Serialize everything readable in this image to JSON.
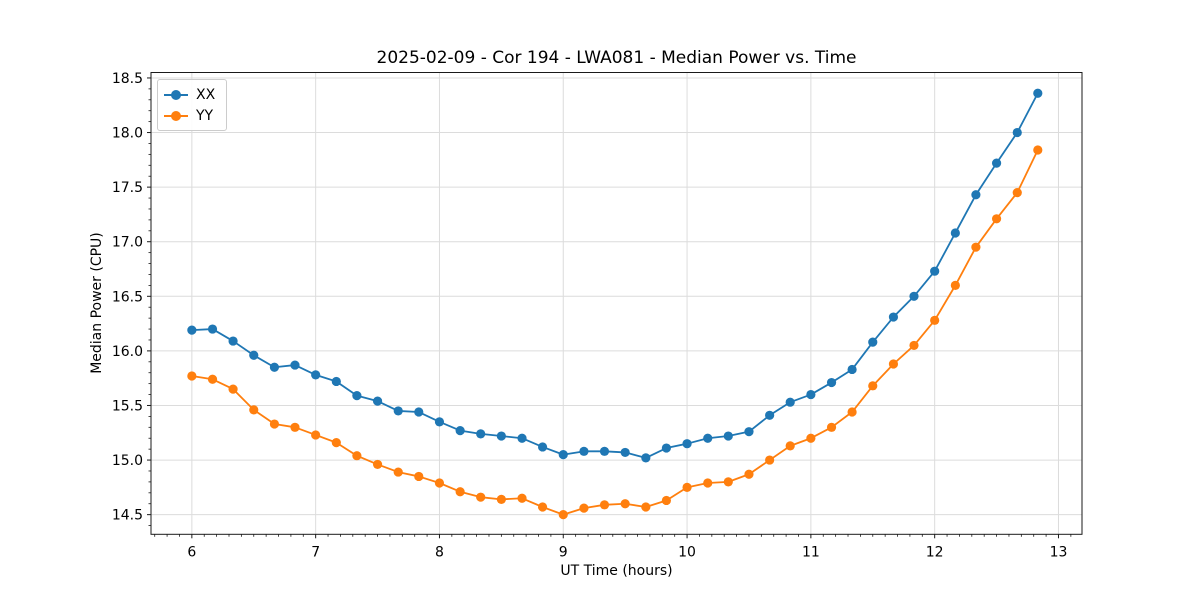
{
  "chart_data": {
    "type": "line",
    "title": "2025-02-09 - Cor 194 - LWA081 - Median Power vs. Time",
    "xlabel": "UT Time (hours)",
    "ylabel": "Median Power (CPU)",
    "xlim": [
      5.67,
      13.19
    ],
    "ylim": [
      14.32,
      18.55
    ],
    "x_tick_values": [
      6,
      7,
      8,
      9,
      10,
      11,
      12,
      13
    ],
    "x_tick_labels": [
      "6",
      "7",
      "8",
      "9",
      "10",
      "11",
      "12",
      "13"
    ],
    "y_tick_values": [
      14.5,
      15.0,
      15.5,
      16.0,
      16.5,
      17.0,
      17.5,
      18.0,
      18.5
    ],
    "y_tick_labels": [
      "14.5",
      "15.0",
      "15.5",
      "16.0",
      "16.5",
      "17.0",
      "17.5",
      "18.0",
      "18.5"
    ],
    "minor_tick_step": 0.1,
    "grid": "major",
    "grid_color": "#dcdcdc",
    "spine_color": "#1a1a1a",
    "legend_position": "upper left",
    "x": [
      6.0,
      6.167,
      6.333,
      6.5,
      6.667,
      6.833,
      7.0,
      7.167,
      7.333,
      7.5,
      7.667,
      7.833,
      8.0,
      8.167,
      8.333,
      8.5,
      8.667,
      8.833,
      9.0,
      9.167,
      9.333,
      9.5,
      9.667,
      9.833,
      10.0,
      10.167,
      10.333,
      10.5,
      10.667,
      10.833,
      11.0,
      11.167,
      11.333,
      11.5,
      11.667,
      11.833,
      12.0,
      12.167,
      12.333,
      12.5,
      12.667,
      12.833
    ],
    "series": [
      {
        "name": "XX",
        "color": "#1f77b4",
        "marker": "circle",
        "values": [
          16.19,
          16.2,
          16.09,
          15.96,
          15.85,
          15.87,
          15.78,
          15.72,
          15.59,
          15.54,
          15.45,
          15.44,
          15.35,
          15.27,
          15.24,
          15.22,
          15.2,
          15.12,
          15.05,
          15.08,
          15.08,
          15.07,
          15.02,
          15.11,
          15.15,
          15.2,
          15.22,
          15.26,
          15.41,
          15.53,
          15.6,
          15.71,
          15.83,
          16.08,
          16.31,
          16.5,
          16.73,
          17.08,
          17.43,
          17.72,
          18.0,
          18.36
        ]
      },
      {
        "name": "YY",
        "color": "#ff7f0e",
        "marker": "circle",
        "values": [
          15.77,
          15.74,
          15.65,
          15.46,
          15.33,
          15.3,
          15.23,
          15.16,
          15.04,
          14.96,
          14.89,
          14.85,
          14.79,
          14.71,
          14.66,
          14.64,
          14.65,
          14.57,
          14.5,
          14.56,
          14.59,
          14.6,
          14.57,
          14.63,
          14.75,
          14.79,
          14.8,
          14.87,
          15.0,
          15.13,
          15.2,
          15.3,
          15.44,
          15.68,
          15.88,
          16.05,
          16.28,
          16.6,
          16.95,
          17.21,
          17.45,
          17.84
        ]
      }
    ]
  }
}
